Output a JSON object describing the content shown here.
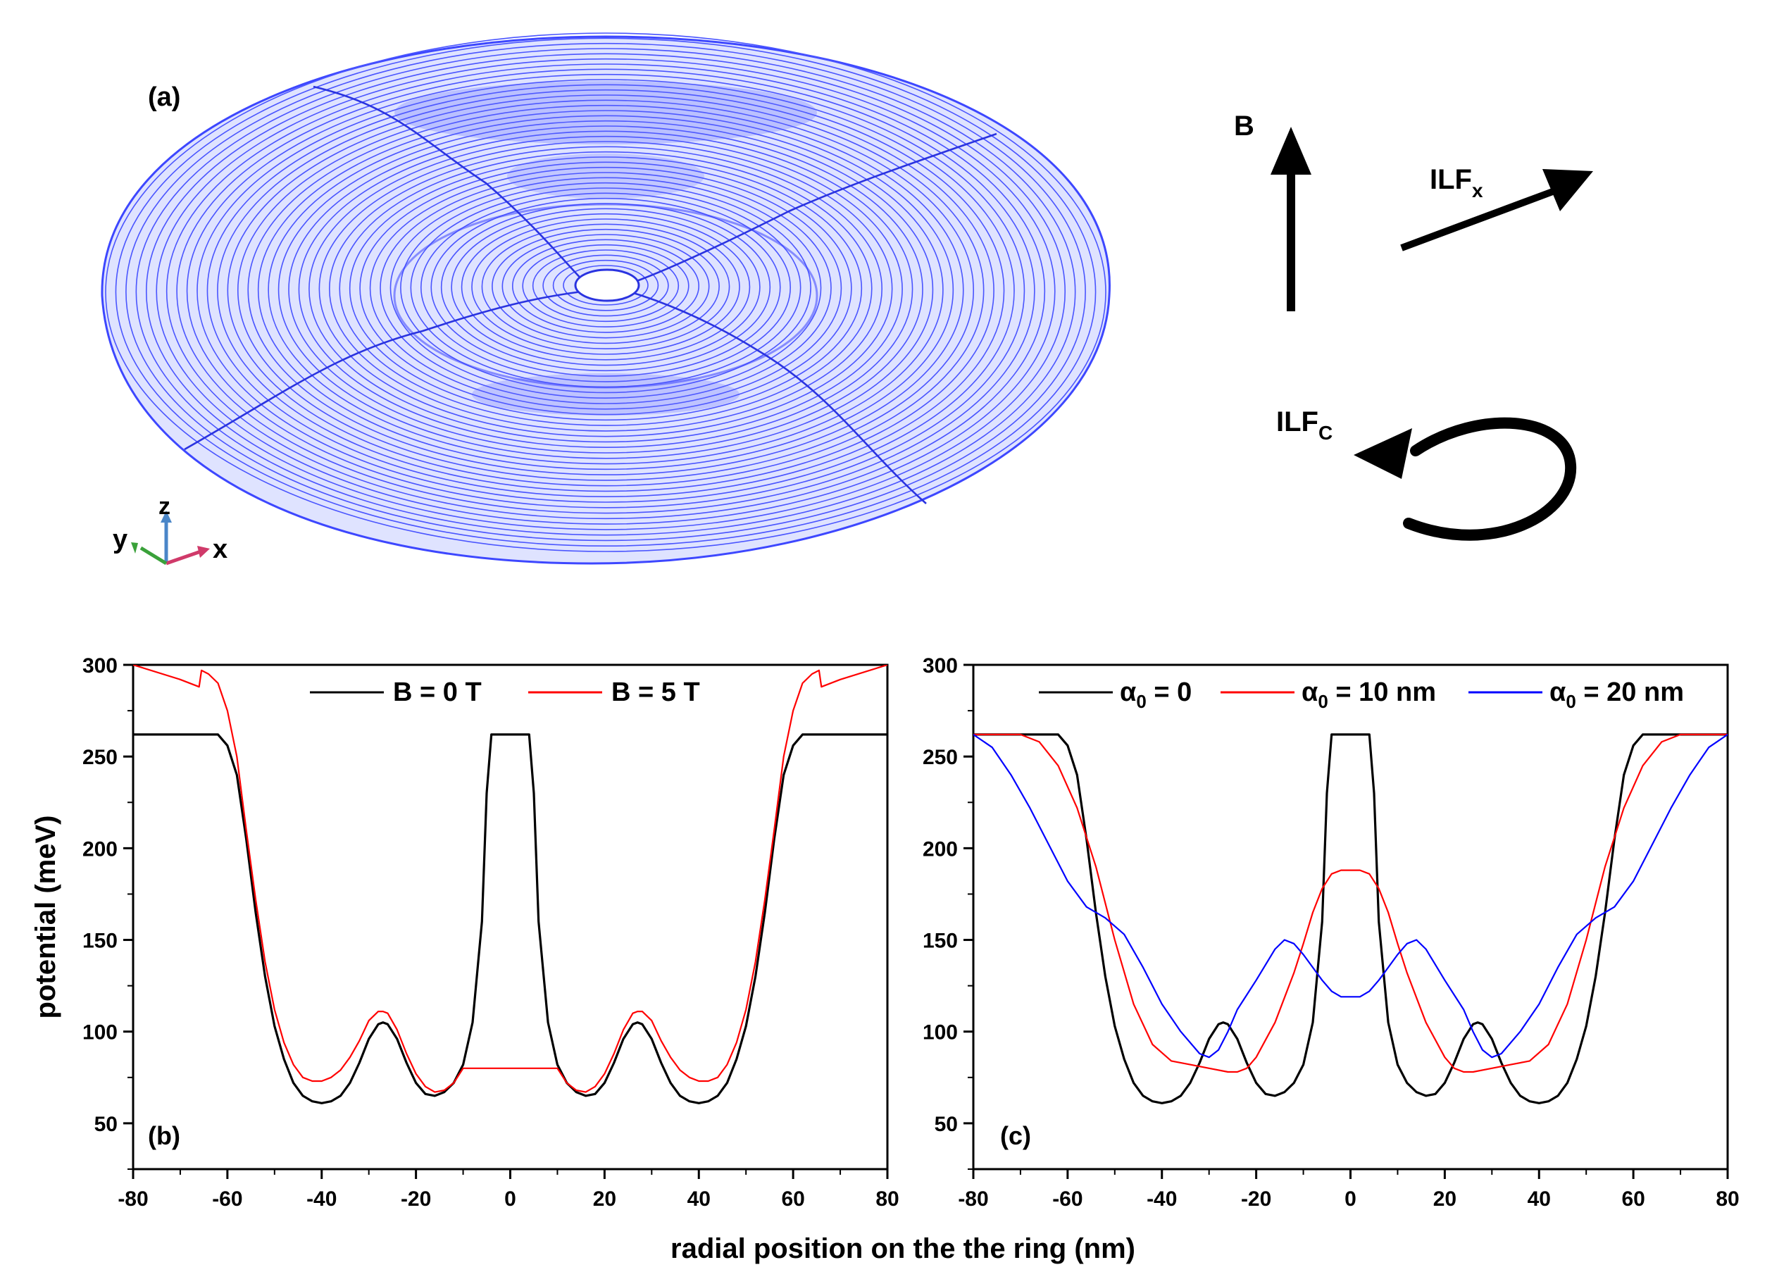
{
  "panel_a": {
    "label": "(a)",
    "axes": {
      "x": "x",
      "y": "y",
      "z": "z"
    },
    "arrow_b": "B",
    "ilf_x": {
      "main": "ILF",
      "sub": "x"
    },
    "ilf_c": {
      "main": "ILF",
      "sub": "C"
    }
  },
  "shared": {
    "xlabel": "radial position on the the ring (nm)",
    "ylabel": "potential (meV)"
  },
  "chart_data": [
    {
      "type": "line",
      "panel_label": "(b)",
      "xlim": [
        -80,
        80
      ],
      "ylim": [
        25,
        300
      ],
      "xticks": [
        -80,
        -60,
        -40,
        -20,
        0,
        20,
        40,
        60,
        80
      ],
      "yticks": [
        50,
        100,
        150,
        200,
        250,
        300
      ],
      "legend_position": "top",
      "series": [
        {
          "name": "B = 0 T",
          "color": "#000000",
          "x": [
            -80,
            -62,
            -60,
            -58,
            -56,
            -54,
            -52,
            -50,
            -48,
            -46,
            -44,
            -42,
            -40,
            -38,
            -36,
            -34,
            -32,
            -30,
            -28,
            -27,
            -26,
            -24,
            -22,
            -20,
            -18,
            -16,
            -14,
            -12,
            -10,
            -8,
            -6,
            -5,
            -4,
            4,
            5,
            6,
            8,
            10,
            12,
            14,
            16,
            18,
            20,
            22,
            24,
            26,
            27,
            28,
            30,
            32,
            34,
            36,
            38,
            40,
            42,
            44,
            46,
            48,
            50,
            52,
            54,
            56,
            58,
            60,
            62,
            80
          ],
          "y": [
            262,
            262,
            256,
            240,
            205,
            165,
            130,
            103,
            85,
            72,
            65,
            62,
            61,
            62,
            65,
            72,
            83,
            96,
            104,
            105,
            104,
            96,
            83,
            72,
            66,
            65,
            67,
            72,
            82,
            105,
            160,
            230,
            262,
            262,
            230,
            160,
            105,
            82,
            72,
            67,
            65,
            66,
            72,
            83,
            96,
            104,
            105,
            104,
            96,
            83,
            72,
            65,
            62,
            61,
            62,
            65,
            72,
            85,
            103,
            130,
            165,
            205,
            240,
            256,
            262,
            262
          ]
        },
        {
          "name": "B = 5 T",
          "color": "#ff0000",
          "x": [
            -80,
            -70,
            -66,
            -65.5,
            -64,
            -62,
            -60,
            -58,
            -56,
            -54,
            -52,
            -50,
            -48,
            -46,
            -44,
            -42,
            -40,
            -38,
            -36,
            -34,
            -32,
            -30,
            -28,
            -27,
            -26,
            -24,
            -22,
            -20,
            -18,
            -16,
            -14,
            -12,
            -10,
            10,
            12,
            14,
            16,
            18,
            20,
            22,
            24,
            26,
            27,
            28,
            30,
            32,
            34,
            36,
            38,
            40,
            42,
            44,
            46,
            48,
            50,
            52,
            54,
            56,
            58,
            60,
            62,
            64,
            65.5,
            66,
            70,
            80
          ],
          "y": [
            300,
            292,
            288,
            297,
            295,
            290,
            275,
            250,
            210,
            172,
            138,
            112,
            94,
            82,
            75,
            73,
            73,
            75,
            79,
            86,
            95,
            106,
            111,
            111,
            110,
            101,
            88,
            77,
            70,
            67,
            68,
            72,
            80,
            80,
            72,
            68,
            67,
            70,
            77,
            88,
            101,
            110,
            111,
            111,
            106,
            95,
            86,
            79,
            75,
            73,
            73,
            75,
            82,
            94,
            112,
            138,
            172,
            210,
            250,
            275,
            290,
            295,
            297,
            288,
            292,
            300
          ]
        }
      ]
    },
    {
      "type": "line",
      "panel_label": "(c)",
      "xlim": [
        -80,
        80
      ],
      "ylim": [
        25,
        300
      ],
      "xticks": [
        -80,
        -60,
        -40,
        -20,
        0,
        20,
        40,
        60,
        80
      ],
      "yticks": [
        50,
        100,
        150,
        200,
        250,
        300
      ],
      "legend_position": "top",
      "series": [
        {
          "name": "α0 = 0",
          "color": "#000000",
          "x": [
            -80,
            -62,
            -60,
            -58,
            -56,
            -54,
            -52,
            -50,
            -48,
            -46,
            -44,
            -42,
            -40,
            -38,
            -36,
            -34,
            -32,
            -30,
            -28,
            -27,
            -26,
            -24,
            -22,
            -20,
            -18,
            -16,
            -14,
            -12,
            -10,
            -8,
            -6,
            -5,
            -4,
            4,
            5,
            6,
            8,
            10,
            12,
            14,
            16,
            18,
            20,
            22,
            24,
            26,
            27,
            28,
            30,
            32,
            34,
            36,
            38,
            40,
            42,
            44,
            46,
            48,
            50,
            52,
            54,
            56,
            58,
            60,
            62,
            80
          ],
          "y": [
            262,
            262,
            256,
            240,
            205,
            165,
            130,
            103,
            85,
            72,
            65,
            62,
            61,
            62,
            65,
            72,
            83,
            96,
            104,
            105,
            104,
            96,
            83,
            72,
            66,
            65,
            67,
            72,
            82,
            105,
            160,
            230,
            262,
            262,
            230,
            160,
            105,
            82,
            72,
            67,
            65,
            66,
            72,
            83,
            96,
            104,
            105,
            104,
            96,
            83,
            72,
            65,
            62,
            61,
            62,
            65,
            72,
            85,
            103,
            130,
            165,
            205,
            240,
            256,
            262,
            262
          ]
        },
        {
          "name": "α0 = 10 nm",
          "color": "#ff0000",
          "x": [
            -80,
            -70,
            -66,
            -62,
            -58,
            -54,
            -50,
            -46,
            -42,
            -38,
            -34,
            -30,
            -26,
            -24,
            -22,
            -20,
            -16,
            -12,
            -10,
            -8,
            -6,
            -4,
            -2,
            0,
            2,
            4,
            6,
            8,
            10,
            12,
            16,
            20,
            22,
            24,
            26,
            30,
            34,
            38,
            42,
            46,
            50,
            54,
            58,
            62,
            66,
            70,
            80
          ],
          "y": [
            262,
            262,
            258,
            245,
            222,
            190,
            150,
            115,
            93,
            84,
            82,
            80,
            78,
            78,
            80,
            86,
            105,
            132,
            148,
            165,
            178,
            186,
            188,
            188,
            188,
            186,
            178,
            165,
            148,
            132,
            105,
            86,
            80,
            78,
            78,
            80,
            82,
            84,
            93,
            115,
            150,
            190,
            222,
            245,
            258,
            262,
            262
          ]
        },
        {
          "name": "α0 = 20 nm",
          "color": "#0000ff",
          "x": [
            -80,
            -76,
            -72,
            -68,
            -64,
            -60,
            -56,
            -52,
            -48,
            -44,
            -40,
            -36,
            -32,
            -30,
            -28,
            -26,
            -24,
            -20,
            -16,
            -14,
            -12,
            -10,
            -8,
            -6,
            -4,
            -2,
            0,
            2,
            4,
            6,
            8,
            10,
            12,
            14,
            16,
            20,
            24,
            26,
            28,
            30,
            32,
            36,
            40,
            44,
            48,
            52,
            56,
            60,
            64,
            68,
            72,
            76,
            80
          ],
          "y": [
            262,
            255,
            240,
            222,
            202,
            182,
            168,
            162,
            153,
            135,
            115,
            100,
            88,
            86,
            90,
            100,
            112,
            128,
            145,
            150,
            148,
            142,
            135,
            128,
            122,
            119,
            119,
            119,
            122,
            128,
            135,
            142,
            148,
            150,
            145,
            128,
            112,
            100,
            90,
            86,
            88,
            100,
            115,
            135,
            153,
            162,
            168,
            182,
            202,
            222,
            240,
            255,
            262
          ]
        }
      ]
    }
  ]
}
